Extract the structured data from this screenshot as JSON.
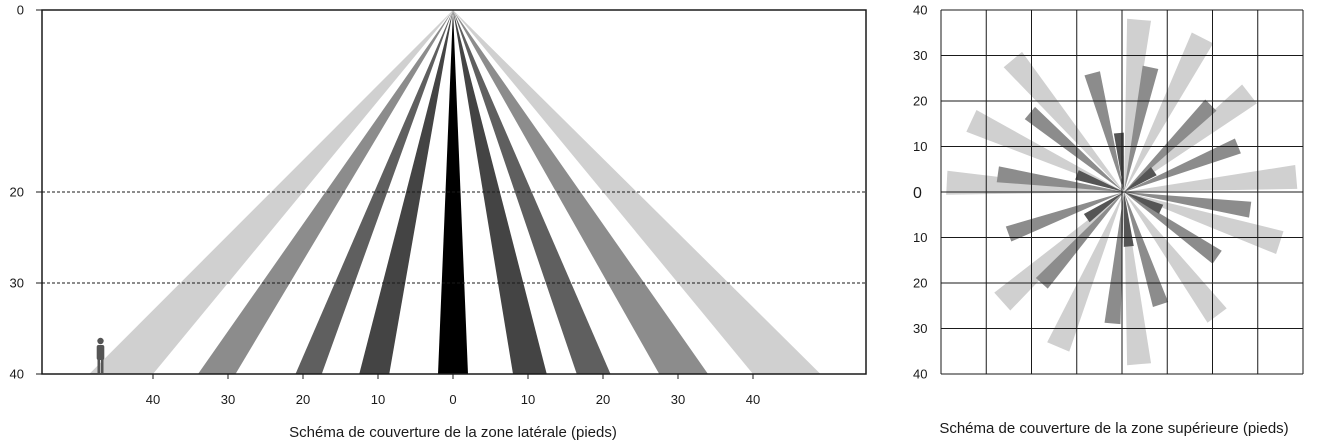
{
  "side_view": {
    "caption": "Schéma de couverture de la zone latérale (pieds)",
    "y_ticks": [
      {
        "label": "0",
        "value": 0
      },
      {
        "label": "20",
        "value": 20
      },
      {
        "label": "30",
        "value": 30
      },
      {
        "label": "40",
        "value": 40
      }
    ],
    "x_ticks": [
      {
        "label": "40",
        "value": -40
      },
      {
        "label": "30",
        "value": -30
      },
      {
        "label": "20",
        "value": -20
      },
      {
        "label": "10",
        "value": -10
      },
      {
        "label": "0",
        "value": 0
      },
      {
        "label": "10",
        "value": 10
      },
      {
        "label": "20",
        "value": 20
      },
      {
        "label": "30",
        "value": 30
      },
      {
        "label": "40",
        "value": 40
      }
    ],
    "dashed_lines_at": [
      20,
      30
    ],
    "beams": [
      {
        "base_from": -48.5,
        "base_to": -40,
        "color": "#d0d0d0"
      },
      {
        "base_from": -34,
        "base_to": -29,
        "color": "#8c8c8c"
      },
      {
        "base_from": -21,
        "base_to": -17.5,
        "color": "#5f5f5f"
      },
      {
        "base_from": -12.5,
        "base_to": -8.5,
        "color": "#444444"
      },
      {
        "base_from": -2,
        "base_to": 2,
        "color": "#000000"
      },
      {
        "base_from": 8,
        "base_to": 12.5,
        "color": "#444444"
      },
      {
        "base_from": 16.5,
        "base_to": 21,
        "color": "#5f5f5f"
      },
      {
        "base_from": 27.5,
        "base_to": 34,
        "color": "#8c8c8c"
      },
      {
        "base_from": 40,
        "base_to": 49,
        "color": "#d0d0d0"
      }
    ],
    "person_icon": "standing-person-icon",
    "person_position": -47
  },
  "top_view": {
    "caption": "Schéma de couverture de la zone supérieure (pieds)",
    "y_ticks": [
      {
        "label": "40",
        "value": 40
      },
      {
        "label": "30",
        "value": 30
      },
      {
        "label": "20",
        "value": 20
      },
      {
        "label": "10",
        "value": 10
      },
      {
        "label": "0",
        "value": 0
      },
      {
        "label": "10",
        "value": -10
      },
      {
        "label": "20",
        "value": -20
      },
      {
        "label": "30",
        "value": -30
      },
      {
        "label": "40",
        "value": -40
      }
    ],
    "beams": [
      {
        "angle": 85,
        "length": 38,
        "color": "#d0d0d0"
      },
      {
        "angle": 63,
        "length": 38,
        "color": "#d0d0d0"
      },
      {
        "angle": 38,
        "length": 35,
        "color": "#d0d0d0"
      },
      {
        "angle": 5,
        "length": 38,
        "color": "#d0d0d0"
      },
      {
        "angle": -18,
        "length": 36,
        "color": "#d0d0d0"
      },
      {
        "angle": -53,
        "length": 34,
        "color": "#d0d0d0"
      },
      {
        "angle": -85,
        "length": 38,
        "color": "#d0d0d0"
      },
      {
        "angle": -113,
        "length": 37,
        "color": "#d0d0d0"
      },
      {
        "angle": -138,
        "length": 36,
        "color": "#d0d0d0"
      },
      {
        "angle": 177,
        "length": 39,
        "color": "#d0d0d0"
      },
      {
        "angle": 155,
        "length": 37,
        "color": "#d0d0d0"
      },
      {
        "angle": 130,
        "length": 38,
        "color": "#d0d0d0"
      },
      {
        "angle": 78,
        "length": 28,
        "color": "#8c8c8c"
      },
      {
        "angle": 45,
        "length": 27,
        "color": "#8c8c8c"
      },
      {
        "angle": 22,
        "length": 27,
        "color": "#8c8c8c"
      },
      {
        "angle": -8,
        "length": 28,
        "color": "#8c8c8c"
      },
      {
        "angle": -35,
        "length": 25,
        "color": "#8c8c8c"
      },
      {
        "angle": -72,
        "length": 26,
        "color": "#8c8c8c"
      },
      {
        "angle": -95,
        "length": 29,
        "color": "#8c8c8c"
      },
      {
        "angle": -132,
        "length": 27,
        "color": "#8c8c8c"
      },
      {
        "angle": -160,
        "length": 27,
        "color": "#8c8c8c"
      },
      {
        "angle": 172,
        "length": 28,
        "color": "#8c8c8c"
      },
      {
        "angle": 140,
        "length": 27,
        "color": "#8c8c8c"
      },
      {
        "angle": 105,
        "length": 27,
        "color": "#8c8c8c"
      },
      {
        "angle": 95,
        "length": 13,
        "color": "#555555"
      },
      {
        "angle": 35,
        "length": 8,
        "color": "#555555"
      },
      {
        "angle": -25,
        "length": 9,
        "color": "#555555"
      },
      {
        "angle": -85,
        "length": 12,
        "color": "#555555"
      },
      {
        "angle": -145,
        "length": 10,
        "color": "#555555"
      },
      {
        "angle": 160,
        "length": 11,
        "color": "#555555"
      }
    ]
  }
}
